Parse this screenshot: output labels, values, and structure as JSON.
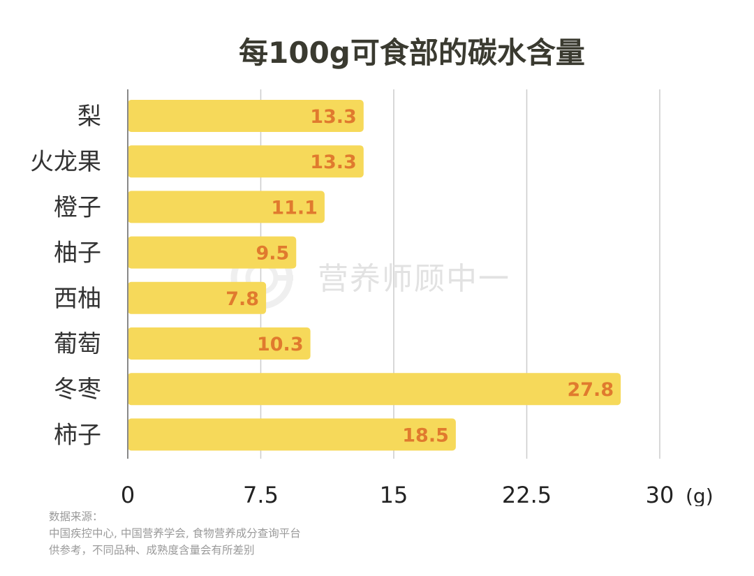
{
  "chart_data": {
    "type": "bar",
    "orientation": "horizontal",
    "title": "每100g可食部的碳水含量",
    "categories": [
      "梨",
      "火龙果",
      "橙子",
      "柚子",
      "西柚",
      "葡萄",
      "冬枣",
      "柿子"
    ],
    "values": [
      13.3,
      13.3,
      11.1,
      9.5,
      7.8,
      10.3,
      27.8,
      18.5
    ],
    "data_labels": [
      "13.3",
      "13.3",
      "11.1",
      "9.5",
      "7.8",
      "10.3",
      "27.8",
      "18.5"
    ],
    "xlim": [
      0,
      30
    ],
    "xticks": [
      0,
      7.5,
      15,
      22.5,
      30
    ],
    "xtick_labels": [
      "0",
      "7.5",
      "15",
      "22.5",
      "30"
    ],
    "unit": "(g)",
    "grid": "vertical",
    "bar_color": "#f6d95a",
    "label_color": "#e07a2e"
  },
  "watermark": {
    "text": "营养师顾中一",
    "icon": "brand-logo-icon"
  },
  "source": {
    "heading": "数据来源：",
    "line1": "中国疾控中心, 中国营养学会, 食物营养成分查询平台",
    "line2": "供参考，不同品种、成熟度含量会有所差别"
  }
}
